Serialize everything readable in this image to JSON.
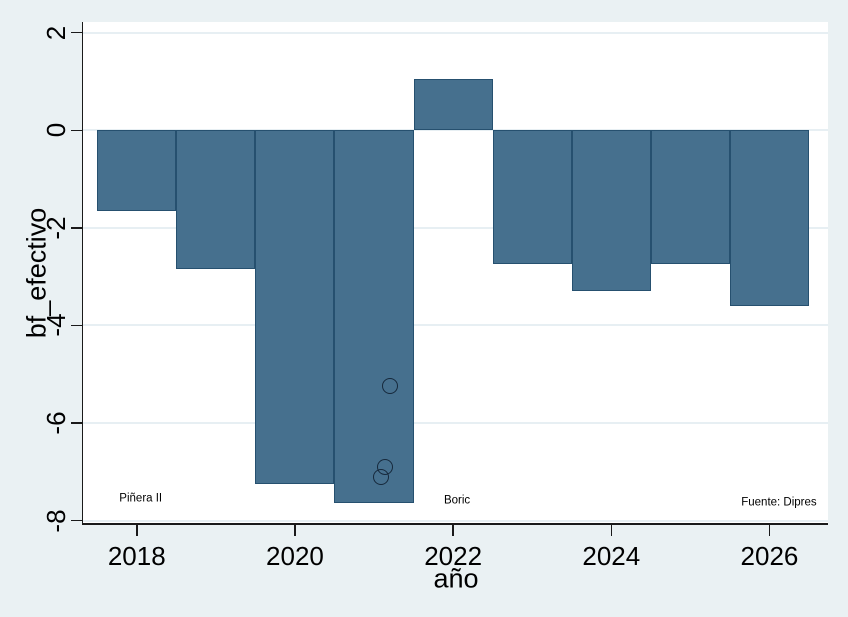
{
  "colors": {
    "background": "#eaf1f3",
    "plot_background": "#ffffff",
    "grid": "#e7eff3",
    "bar_fill": "#46708e",
    "bar_border": "#26506f",
    "marker_stroke": "#16293c",
    "axis": "#1a1a1a",
    "text": "#000000"
  },
  "chart_data": {
    "type": "bar",
    "title": "",
    "xlabel": "año",
    "ylabel": "bf_efectivo",
    "source_note": "Fuente: Dipres",
    "xlim": [
      2017.32,
      2026.74
    ],
    "ylim": [
      -8.05,
      2.22
    ],
    "xticks": [
      2018,
      2020,
      2022,
      2024,
      2026
    ],
    "yticks": [
      2,
      0,
      -2,
      -4,
      -6,
      -8
    ],
    "grid": true,
    "bar_width_years": 1,
    "bars": [
      {
        "year": 2018,
        "value": -1.65
      },
      {
        "year": 2019,
        "value": -2.85
      },
      {
        "year": 2020,
        "value": -7.25
      },
      {
        "year": 2021,
        "value": -7.65
      },
      {
        "year": 2022,
        "value": 1.05
      },
      {
        "year": 2023,
        "value": -2.75
      },
      {
        "year": 2024,
        "value": -3.3
      },
      {
        "year": 2025,
        "value": -2.75
      },
      {
        "year": 2026,
        "value": -3.6
      }
    ],
    "markers": [
      {
        "x": 2021.2,
        "y": -5.25,
        "shape": "hollow-circle"
      },
      {
        "x": 2021.14,
        "y": -6.9,
        "shape": "hollow-circle"
      },
      {
        "x": 2021.09,
        "y": -7.1,
        "shape": "hollow-circle"
      }
    ],
    "annotations": [
      {
        "id": "pinera",
        "text": "Piñera II",
        "x": 2018.05,
        "y": -7.55
      },
      {
        "id": "boric",
        "text": "Boric",
        "x": 2022.05,
        "y": -7.6
      },
      {
        "id": "source",
        "text": "Fuente: Dipres",
        "x": 2026.12,
        "y": -7.65
      }
    ]
  }
}
